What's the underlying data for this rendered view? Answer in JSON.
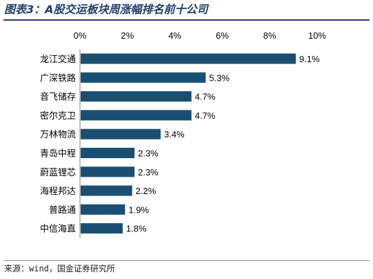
{
  "header": {
    "title": "图表3：A股交运板块周涨幅排名前十公司"
  },
  "footer": {
    "source": "来源：wind，国金证券研究所"
  },
  "chart_data": {
    "type": "bar",
    "orientation": "horizontal",
    "categories": [
      "龙江交通",
      "广深铁路",
      "音飞储存",
      "密尔克卫",
      "万林物流",
      "青岛中程",
      "蔚蓝锂芯",
      "海程邦达",
      "普路通",
      "中信海直"
    ],
    "values": [
      9.1,
      5.3,
      4.7,
      4.7,
      3.4,
      2.3,
      2.3,
      2.2,
      1.9,
      1.8
    ],
    "data_labels": [
      "9.1%",
      "5.3%",
      "4.7%",
      "4.7%",
      "3.4%",
      "2.3%",
      "2.3%",
      "2.2%",
      "1.9%",
      "1.8%"
    ],
    "xlim": [
      0,
      10
    ],
    "x_ticks": [
      0,
      2,
      4,
      6,
      8,
      10
    ],
    "x_tick_labels": [
      "0%",
      "2%",
      "4%",
      "6%",
      "8%",
      "10%"
    ],
    "x_axis_position": "top",
    "grid": false,
    "legend": "none",
    "colors": {
      "bar": "#1b4f72",
      "text": "#000000",
      "title": "#1f3e6b"
    }
  }
}
